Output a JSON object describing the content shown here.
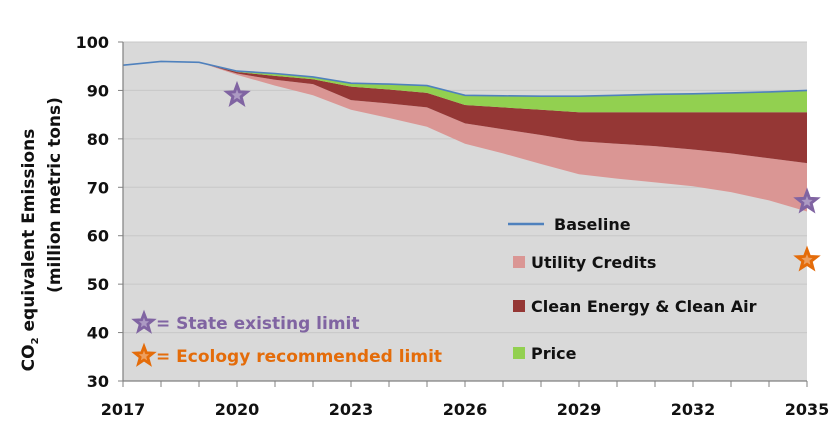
{
  "chart_data": {
    "type": "area",
    "title": "",
    "xlabel": "",
    "ylabel_line1": "CO",
    "ylabel_sub": "2",
    "ylabel_line1_rest": " equivalent Emissions",
    "ylabel_line2": "(million metric tons)",
    "xlim": [
      2017,
      2035
    ],
    "ylim": [
      30,
      100
    ],
    "grid": true,
    "x_ticks": [
      "2017",
      "2020",
      "2023",
      "2026",
      "2029",
      "2032",
      "2035"
    ],
    "x_tick_values": [
      2017,
      2020,
      2023,
      2026,
      2029,
      2032,
      2035
    ],
    "y_ticks": [
      "30",
      "40",
      "50",
      "60",
      "70",
      "80",
      "90",
      "100"
    ],
    "y_tick_values": [
      30,
      40,
      50,
      60,
      70,
      80,
      90,
      100
    ],
    "x": [
      2017,
      2018,
      2019,
      2020,
      2021,
      2022,
      2023,
      2024,
      2025,
      2026,
      2027,
      2028,
      2029,
      2030,
      2031,
      2032,
      2033,
      2034,
      2035
    ],
    "series": [
      {
        "name": "Baseline",
        "kind": "line",
        "color": "#4f81bd",
        "values": [
          95.2,
          96.0,
          95.8,
          94.0,
          93.5,
          92.8,
          91.5,
          91.3,
          91.0,
          89.0,
          88.9,
          88.8,
          88.8,
          89.0,
          89.2,
          89.3,
          89.5,
          89.7,
          90.0
        ]
      },
      {
        "name": "Utility Credits",
        "kind": "band",
        "color": "#da9694",
        "lower": [
          95.2,
          96.0,
          95.8,
          93.2,
          91.0,
          89.0,
          86.0,
          84.3,
          82.5,
          79.0,
          77.0,
          74.8,
          72.7,
          71.8,
          71.0,
          70.2,
          69.0,
          67.3,
          65.0
        ],
        "upper": [
          95.2,
          96.0,
          95.8,
          93.5,
          92.2,
          91.3,
          88.0,
          87.3,
          86.5,
          83.2,
          82.0,
          80.8,
          79.5,
          79.0,
          78.5,
          77.8,
          77.0,
          76.0,
          75.0
        ]
      },
      {
        "name": "Clean Energy & Clean Air",
        "kind": "band",
        "color": "#953735",
        "lower": [
          95.2,
          96.0,
          95.8,
          93.5,
          92.2,
          91.3,
          88.0,
          87.3,
          86.5,
          83.2,
          82.0,
          80.8,
          79.5,
          79.0,
          78.5,
          77.8,
          77.0,
          76.0,
          75.0
        ],
        "upper": [
          95.2,
          96.0,
          95.8,
          93.8,
          93.0,
          92.3,
          90.8,
          90.2,
          89.5,
          87.0,
          86.5,
          86.0,
          85.5,
          85.5,
          85.5,
          85.5,
          85.5,
          85.5,
          85.5
        ]
      },
      {
        "name": "Price",
        "kind": "band",
        "color": "#92d050",
        "lower": [
          95.2,
          96.0,
          95.8,
          93.8,
          93.0,
          92.3,
          90.8,
          90.2,
          89.5,
          87.0,
          86.5,
          86.0,
          85.5,
          85.5,
          85.5,
          85.5,
          85.5,
          85.5,
          85.5
        ],
        "upper": [
          95.2,
          96.0,
          95.8,
          94.0,
          93.5,
          92.8,
          91.5,
          91.3,
          91.0,
          89.0,
          88.9,
          88.8,
          88.8,
          89.0,
          89.2,
          89.3,
          89.5,
          89.7,
          90.0
        ]
      }
    ],
    "markers": [
      {
        "name": "State existing limit",
        "year": 2020,
        "value": 89,
        "color": "#8064a2"
      },
      {
        "name": "State existing limit",
        "year": 2035,
        "value": 67,
        "color": "#8064a2"
      },
      {
        "name": "Ecology recommended limit",
        "year": 2035,
        "value": 55,
        "color": "#e46c0a"
      }
    ],
    "legend": {
      "placement": "bottom-right (inside plot)",
      "entries": [
        {
          "label": "Baseline",
          "type": "line",
          "color": "#4f81bd"
        },
        {
          "label": "Utility Credits",
          "type": "swatch",
          "color": "#da9694"
        },
        {
          "label": "Clean Energy & Clean Air",
          "type": "swatch",
          "color": "#953735"
        },
        {
          "label": "Price",
          "type": "swatch",
          "color": "#92d050"
        }
      ]
    },
    "annotations": [
      {
        "text": "= State existing limit",
        "color": "#8064a2",
        "star_color": "#8064a2"
      },
      {
        "text": "= Ecology recommended limit",
        "color": "#e46c0a",
        "star_color": "#e46c0a"
      }
    ]
  },
  "colors": {
    "plot_background": "#d9d9d9",
    "gridline": "#c8c8c8",
    "axis": "#808080"
  }
}
